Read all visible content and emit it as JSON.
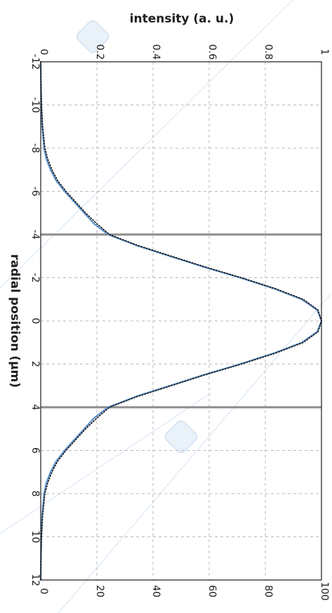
{
  "chart_data": {
    "type": "line",
    "orientation": "rotated-90-clockwise",
    "x_axis": {
      "label": "radial position (µm)",
      "range": [
        -12,
        12
      ],
      "ticks": [
        "-12",
        "-10",
        "-8",
        "-6",
        "-4",
        "-2",
        "0",
        "2",
        "4",
        "6",
        "8",
        "10",
        "12"
      ]
    },
    "y_axis_top": {
      "label": "intensity (a. u.)",
      "range": [
        0,
        1
      ],
      "ticks": [
        "0",
        "0.2",
        "0.4",
        "0.6",
        "0.8",
        "1"
      ]
    },
    "y_axis_bottom": {
      "label": "",
      "range": [
        0,
        100
      ],
      "ticks": [
        "0",
        "20",
        "40",
        "60",
        "80",
        "100"
      ]
    },
    "grid": true,
    "vertical_markers": [
      -4,
      4
    ],
    "series": [
      {
        "style": "solid",
        "color": "#5b8fc9",
        "x": [
          -12,
          -11,
          -10,
          -9,
          -8,
          -7.5,
          -7,
          -6.5,
          -6,
          -5.5,
          -5,
          -4.5,
          -4,
          -3.5,
          -3,
          -2.5,
          -2,
          -1.5,
          -1,
          -0.5,
          0,
          0.5,
          1,
          1.5,
          2,
          2.5,
          3,
          3.5,
          4,
          4.5,
          5,
          5.5,
          6,
          6.5,
          7,
          7.5,
          8,
          9,
          10,
          11,
          12
        ],
        "y": [
          0,
          0.001,
          0.002,
          0.005,
          0.012,
          0.02,
          0.035,
          0.055,
          0.085,
          0.12,
          0.155,
          0.19,
          0.24,
          0.34,
          0.46,
          0.58,
          0.71,
          0.83,
          0.93,
          0.985,
          1.0,
          0.985,
          0.93,
          0.83,
          0.71,
          0.58,
          0.46,
          0.34,
          0.24,
          0.19,
          0.155,
          0.12,
          0.085,
          0.055,
          0.035,
          0.02,
          0.012,
          0.005,
          0.002,
          0.001,
          0
        ]
      },
      {
        "style": "dotted",
        "color": "#111111",
        "x": [
          -12,
          -11,
          -10,
          -9,
          -8,
          -7.5,
          -7,
          -6.5,
          -6,
          -5.5,
          -5,
          -4.5,
          -4,
          -3.5,
          -3,
          -2.5,
          -2,
          -1.5,
          -1,
          -0.5,
          0,
          0.5,
          1,
          1.5,
          2,
          2.5,
          3,
          3.5,
          4,
          4.5,
          5,
          5.5,
          6,
          6.5,
          7,
          7.5,
          8,
          9,
          10,
          11,
          12
        ],
        "y": [
          0,
          0.001,
          0.003,
          0.007,
          0.015,
          0.025,
          0.04,
          0.06,
          0.09,
          0.125,
          0.16,
          0.2,
          0.245,
          0.345,
          0.465,
          0.585,
          0.715,
          0.835,
          0.935,
          0.988,
          1.0,
          0.988,
          0.935,
          0.835,
          0.715,
          0.585,
          0.465,
          0.345,
          0.245,
          0.2,
          0.16,
          0.125,
          0.09,
          0.06,
          0.04,
          0.025,
          0.015,
          0.007,
          0.003,
          0.001,
          0
        ]
      }
    ]
  }
}
